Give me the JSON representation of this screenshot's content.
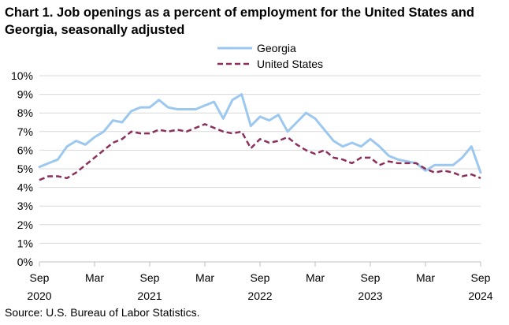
{
  "page": {
    "title": "Chart 1. Job openings as a percent of employment for the United States and Georgia, seasonally adjusted",
    "source": "Source: U.S. Bureau of Labor Statistics."
  },
  "chart_data": {
    "type": "line",
    "title": "Chart 1. Job openings as a percent of employment for the United States and Georgia, seasonally adjusted",
    "xlabel": "",
    "ylabel": "",
    "ylim": [
      0,
      10
    ],
    "y_ticks": [
      "0%",
      "1%",
      "2%",
      "3%",
      "4%",
      "5%",
      "6%",
      "7%",
      "8%",
      "9%",
      "10%"
    ],
    "grid": true,
    "legend_position": "top-center",
    "x_ticks": [
      {
        "index": 0,
        "month": "Sep",
        "year": "2020"
      },
      {
        "index": 6,
        "month": "Mar",
        "year": ""
      },
      {
        "index": 12,
        "month": "Sep",
        "year": "2021"
      },
      {
        "index": 18,
        "month": "Mar",
        "year": ""
      },
      {
        "index": 24,
        "month": "Sep",
        "year": "2022"
      },
      {
        "index": 30,
        "month": "Mar",
        "year": ""
      },
      {
        "index": 36,
        "month": "Sep",
        "year": "2023"
      },
      {
        "index": 42,
        "month": "Mar",
        "year": ""
      },
      {
        "index": 48,
        "month": "Sep",
        "year": "2024"
      }
    ],
    "series": [
      {
        "name": "Georgia",
        "color": "#9cc8f0",
        "style": "solid",
        "values": [
          5.1,
          5.3,
          5.5,
          6.2,
          6.5,
          6.3,
          6.7,
          7.0,
          7.6,
          7.5,
          8.1,
          8.3,
          8.3,
          8.7,
          8.3,
          8.2,
          8.2,
          8.2,
          8.4,
          8.6,
          7.7,
          8.7,
          9.0,
          7.3,
          7.8,
          7.6,
          7.9,
          7.0,
          7.5,
          8.0,
          7.7,
          7.1,
          6.5,
          6.2,
          6.4,
          6.2,
          6.6,
          6.2,
          5.7,
          5.5,
          5.4,
          5.3,
          4.9,
          5.2,
          5.2,
          5.2,
          5.6,
          6.2,
          4.8
        ]
      },
      {
        "name": "United States",
        "color": "#8b2f5c",
        "style": "dashed",
        "values": [
          4.4,
          4.6,
          4.6,
          4.5,
          4.8,
          5.2,
          5.6,
          6.0,
          6.4,
          6.6,
          7.0,
          6.9,
          6.9,
          7.1,
          7.0,
          7.1,
          7.0,
          7.2,
          7.4,
          7.2,
          7.0,
          6.9,
          7.0,
          6.1,
          6.6,
          6.4,
          6.5,
          6.7,
          6.3,
          6.0,
          5.8,
          6.0,
          5.6,
          5.5,
          5.3,
          5.6,
          5.6,
          5.2,
          5.4,
          5.3,
          5.3,
          5.3,
          5.0,
          4.8,
          4.9,
          4.8,
          4.6,
          4.7,
          4.5
        ]
      }
    ]
  }
}
